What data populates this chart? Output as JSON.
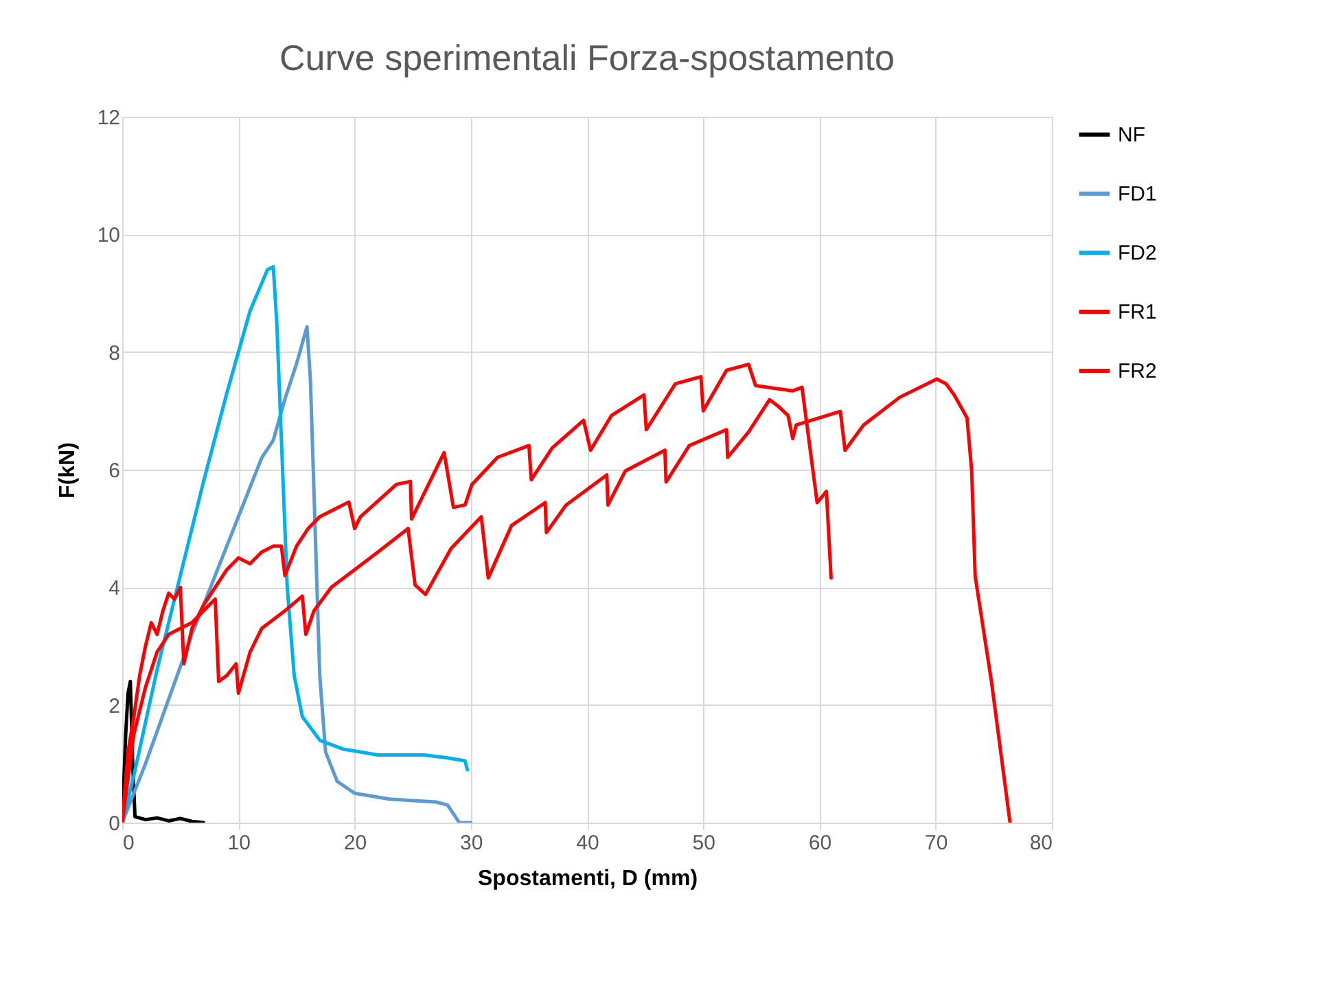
{
  "chart_data": {
    "type": "line",
    "title": "Curve sperimentali Forza-spostamento",
    "xlabel": "Spostamenti, D (mm)",
    "ylabel": "F(kN)",
    "xlim": [
      0,
      80
    ],
    "xticks": [
      0,
      10,
      20,
      30,
      40,
      50,
      60,
      70,
      80
    ],
    "ylim": [
      0,
      12
    ],
    "yticks": [
      0,
      2,
      4,
      6,
      8,
      10,
      12
    ],
    "grid": true,
    "legend": "right",
    "marker": "none",
    "line_style": "solid",
    "series": [
      {
        "name": "NF",
        "color": "#000000",
        "x": [
          0,
          0.3,
          0.5,
          0.7,
          0.9,
          1.1,
          2,
          3,
          4,
          5,
          6,
          7
        ],
        "values": [
          0,
          1.5,
          2.2,
          2.4,
          1.0,
          0.1,
          0.05,
          0.08,
          0.03,
          0.07,
          0.02,
          0
        ]
      },
      {
        "name": "FD1",
        "color": "#5b9bd5",
        "x": [
          0,
          2,
          4,
          6,
          8,
          10,
          12,
          13,
          14,
          15,
          15.9,
          16.2,
          16.6,
          17,
          17.5,
          18.5,
          20,
          23,
          27,
          28,
          29,
          30
        ],
        "values": [
          0,
          1.0,
          2.1,
          3.2,
          4.2,
          5.2,
          6.2,
          6.5,
          7.2,
          7.8,
          8.43,
          7.5,
          5,
          2.5,
          1.2,
          0.7,
          0.5,
          0.4,
          0.35,
          0.3,
          0,
          0
        ]
      },
      {
        "name": "FD2",
        "color": "#00b0f0",
        "x": [
          0,
          1,
          3,
          5,
          7,
          9,
          11,
          12.5,
          13,
          13.3,
          13.8,
          14.2,
          14.8,
          15.5,
          17,
          19,
          22,
          26,
          28,
          29.5,
          29.7
        ],
        "values": [
          0,
          0.8,
          2.6,
          4.2,
          5.8,
          7.3,
          8.7,
          9.4,
          9.45,
          8.5,
          6,
          4,
          2.5,
          1.8,
          1.4,
          1.25,
          1.15,
          1.15,
          1.1,
          1.05,
          0.9
        ]
      },
      {
        "name": "FR1",
        "color": "#ff0000",
        "x": [
          0,
          0.5,
          1,
          1.5,
          2,
          2.5,
          3,
          3.5,
          4,
          4.5,
          5,
          5.3,
          6,
          7,
          8,
          9,
          10,
          11,
          12,
          13,
          13.7,
          14,
          15,
          16,
          17,
          18,
          19.5,
          20,
          20.5,
          23.6,
          24.8,
          24.9,
          27.7,
          28.5,
          29.5,
          30.1,
          32.3,
          35,
          35.2,
          37,
          39.7,
          40.3,
          42.1,
          44.9,
          45.1,
          47.6,
          49.8,
          50,
          52,
          53.9,
          54.5,
          57.7,
          58.5,
          59.8,
          60.6,
          61
        ],
        "values": [
          0,
          1.2,
          1.8,
          2.5,
          3.0,
          3.4,
          3.2,
          3.6,
          3.9,
          3.8,
          4.0,
          2.7,
          3.3,
          3.7,
          4.0,
          4.3,
          4.5,
          4.4,
          4.6,
          4.7,
          4.7,
          4.2,
          4.7,
          5.0,
          5.2,
          5.3,
          5.45,
          5.0,
          5.2,
          5.75,
          5.8,
          5.16,
          6.29,
          5.36,
          5.4,
          5.75,
          6.21,
          6.41,
          5.83,
          6.37,
          6.84,
          6.33,
          6.92,
          7.27,
          6.68,
          7.46,
          7.58,
          7.0,
          7.69,
          7.79,
          7.43,
          7.34,
          7.4,
          5.44,
          5.63,
          4.16
        ]
      },
      {
        "name": "FR2",
        "color": "#ff0000",
        "x": [
          0,
          1,
          2,
          3,
          4,
          5,
          6,
          7,
          8,
          8.3,
          9,
          9.8,
          10,
          11,
          12,
          14,
          15.5,
          15.8,
          16.5,
          18,
          20,
          22,
          24.6,
          25.2,
          26.1,
          28.3,
          30.9,
          31.5,
          33.5,
          36.4,
          36.5,
          38.2,
          41.7,
          41.8,
          43.3,
          46.7,
          46.8,
          48.8,
          52,
          52.1,
          53.9,
          55.7,
          56.5,
          57.3,
          57.7,
          58,
          61.8,
          62.2,
          63.8,
          66.9,
          70.1,
          70.9,
          71.6,
          72.7,
          73.1,
          73.4,
          74.8,
          76.4
        ],
        "values": [
          0,
          1.5,
          2.3,
          2.9,
          3.2,
          3.3,
          3.4,
          3.6,
          3.8,
          2.4,
          2.5,
          2.7,
          2.2,
          2.9,
          3.3,
          3.6,
          3.85,
          3.2,
          3.6,
          4.0,
          4.3,
          4.6,
          5.0,
          4.04,
          3.88,
          4.66,
          5.2,
          4.16,
          5.05,
          5.44,
          4.93,
          5.4,
          5.91,
          5.4,
          5.98,
          6.33,
          5.79,
          6.41,
          6.68,
          6.21,
          6.64,
          7.19,
          7.07,
          6.92,
          6.53,
          6.76,
          6.99,
          6.33,
          6.76,
          7.23,
          7.54,
          7.46,
          7.27,
          6.88,
          5.98,
          4.19,
          2.4,
          0
        ]
      }
    ]
  }
}
